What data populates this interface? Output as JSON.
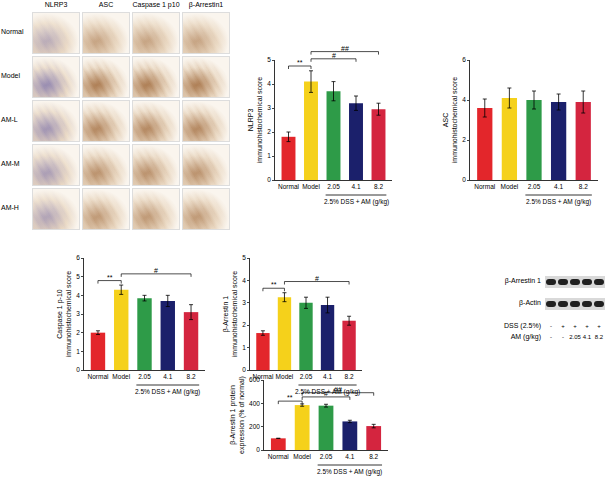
{
  "micrographs": {
    "columns": [
      "NLRP3",
      "ASC",
      "Caspase 1 p10",
      "β-Arrestin1"
    ],
    "rows": [
      "Normal",
      "Model",
      "AM-L",
      "AM-M",
      "AM-H"
    ]
  },
  "blot": {
    "bands": [
      "β-Arrestin 1",
      "β-Actin"
    ],
    "rows": [
      {
        "label": "DSS (2.5%)",
        "values": [
          "-",
          "+",
          "+",
          "+",
          "+"
        ]
      },
      {
        "label": "AM (g/kg)",
        "values": [
          "-",
          "-",
          "2.05",
          "4.1",
          "8.2"
        ]
      }
    ]
  },
  "chart_data": [
    {
      "type": "bar",
      "ylabel": [
        "NLRP3",
        "immunohistochemical score"
      ],
      "categories": [
        "Normal",
        "Model",
        "2.05",
        "4.1",
        "8.2"
      ],
      "group_label": {
        "label": "2.5% DSS + AM (g/kg)",
        "from": "2.05",
        "to": "8.2"
      },
      "values": [
        1.8,
        4.1,
        3.7,
        3.2,
        2.95
      ],
      "errors": [
        0.2,
        0.45,
        0.4,
        0.3,
        0.25
      ],
      "colors": [
        "#e3262b",
        "#f5d11b",
        "#2e9b48",
        "#1b206b",
        "#d4253f"
      ],
      "ylim": [
        0,
        5
      ],
      "yticks": [
        0,
        1,
        2,
        3,
        4,
        5
      ],
      "significance": [
        {
          "from": "Normal",
          "to": "Model",
          "label": "**"
        },
        {
          "from": "Model",
          "to": "4.1",
          "label": "#"
        },
        {
          "from": "Model",
          "to": "8.2",
          "label": "##"
        }
      ]
    },
    {
      "type": "bar",
      "ylabel": [
        "ASC",
        "immunohistochemical score"
      ],
      "categories": [
        "Normal",
        "Model",
        "2.05",
        "4.1",
        "8.2"
      ],
      "group_label": {
        "label": "2.5% DSS + AM (g/kg)",
        "from": "2.05",
        "to": "8.2"
      },
      "values": [
        3.6,
        4.1,
        4.0,
        3.9,
        3.9
      ],
      "errors": [
        0.45,
        0.5,
        0.45,
        0.4,
        0.55
      ],
      "colors": [
        "#e3262b",
        "#f5d11b",
        "#2e9b48",
        "#1b206b",
        "#d4253f"
      ],
      "ylim": [
        0,
        6
      ],
      "yticks": [
        0,
        2,
        4,
        6
      ],
      "significance": []
    },
    {
      "type": "bar",
      "ylabel": [
        "Caspase 1 p-10",
        "immunohistochemical score"
      ],
      "categories": [
        "Normal",
        "Model",
        "2.05",
        "4.1",
        "8.2"
      ],
      "group_label": {
        "label": "2.5% DSS + AM (g/kg)",
        "from": "2.05",
        "to": "8.2"
      },
      "values": [
        2.0,
        4.3,
        3.85,
        3.7,
        3.1
      ],
      "errors": [
        0.1,
        0.25,
        0.15,
        0.3,
        0.4
      ],
      "colors": [
        "#e3262b",
        "#f5d11b",
        "#2e9b48",
        "#1b206b",
        "#d4253f"
      ],
      "ylim": [
        0,
        6
      ],
      "yticks": [
        0,
        1,
        2,
        3,
        4,
        5,
        6
      ],
      "significance": [
        {
          "from": "Normal",
          "to": "Model",
          "label": "**"
        },
        {
          "from": "Model",
          "to": "8.2",
          "label": "#"
        }
      ]
    },
    {
      "type": "bar",
      "ylabel": [
        "β-Arrestin 1",
        "immunohistochemical score"
      ],
      "categories": [
        "Normal",
        "Model",
        "2.05",
        "4.1",
        "8.2"
      ],
      "group_label": {
        "label": "2.5% DSS + AM (g/kg)",
        "from": "2.05",
        "to": "8.2"
      },
      "values": [
        1.65,
        3.25,
        3.0,
        2.9,
        2.2
      ],
      "errors": [
        0.1,
        0.2,
        0.25,
        0.35,
        0.2
      ],
      "colors": [
        "#e3262b",
        "#f5d11b",
        "#2e9b48",
        "#1b206b",
        "#d4253f"
      ],
      "ylim": [
        0,
        5
      ],
      "yticks": [
        0,
        1,
        2,
        3,
        4,
        5
      ],
      "significance": [
        {
          "from": "Normal",
          "to": "Model",
          "label": "**"
        },
        {
          "from": "Model",
          "to": "8.2",
          "label": "#"
        }
      ]
    },
    {
      "type": "bar",
      "ylabel": [
        "β-Arrestin 1 protein",
        "expression (% of normal)"
      ],
      "categories": [
        "Normal",
        "Model",
        "2.05",
        "4.1",
        "8.2"
      ],
      "group_label": {
        "label": "2.5% DSS + AM (g/kg)",
        "from": "2.05",
        "to": "8.2"
      },
      "values": [
        100,
        385,
        380,
        245,
        205
      ],
      "errors": [
        0,
        10,
        12,
        10,
        15
      ],
      "colors": [
        "#e3262b",
        "#f5d11b",
        "#2e9b48",
        "#1b206b",
        "#d4253f"
      ],
      "ylim": [
        0,
        600
      ],
      "yticks": [
        0,
        200,
        400,
        600
      ],
      "significance": [
        {
          "from": "Normal",
          "to": "Model",
          "label": "**"
        },
        {
          "from": "Model",
          "to": "4.1",
          "label": "#"
        },
        {
          "from": "Model",
          "to": "8.2",
          "label": "##"
        }
      ]
    }
  ]
}
